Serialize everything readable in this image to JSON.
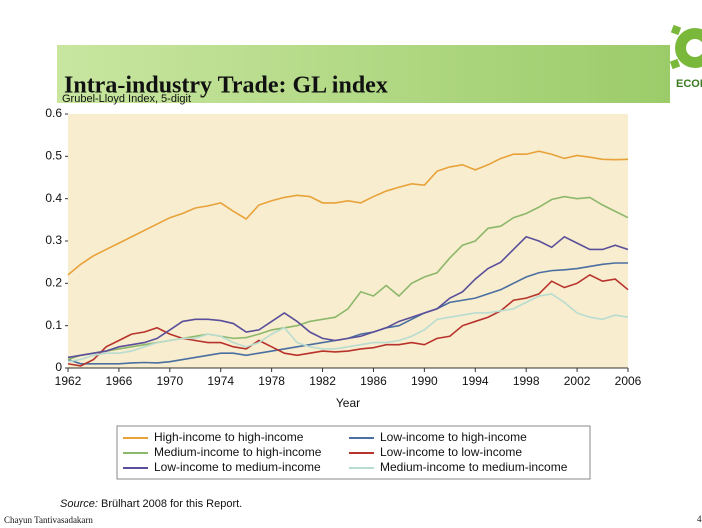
{
  "slide": {
    "title": "Intra-industry Trade: GL index",
    "logo_text": "ECON",
    "footer": "Chayun Tantivasadakarn",
    "page_number": "4",
    "source_label": "Source:",
    "source": "Brülhart 2008 for this Report."
  },
  "chart_data": {
    "type": "line",
    "ylabel": "Grubel-Lloyd Index, 5-digit",
    "xlabel": "Year",
    "x": [
      1962,
      1963,
      1964,
      1965,
      1966,
      1967,
      1968,
      1969,
      1970,
      1971,
      1972,
      1973,
      1974,
      1975,
      1976,
      1977,
      1978,
      1979,
      1980,
      1981,
      1982,
      1983,
      1984,
      1985,
      1986,
      1987,
      1988,
      1989,
      1990,
      1991,
      1992,
      1993,
      1994,
      1995,
      1996,
      1997,
      1998,
      1999,
      2000,
      2001,
      2002,
      2003,
      2004,
      2005,
      2006
    ],
    "xlim": [
      1962,
      2006
    ],
    "xticks": [
      1962,
      1966,
      1970,
      1974,
      1978,
      1982,
      1986,
      1990,
      1994,
      1998,
      2002,
      2006
    ],
    "ylim": [
      0,
      0.6
    ],
    "yticks": [
      0,
      0.1,
      0.2,
      0.3,
      0.4,
      0.5,
      0.6
    ],
    "grid": false,
    "legend": "bottom",
    "series": [
      {
        "name": "High-income to high-income",
        "color": "#e8a23a",
        "values": [
          0.22,
          0.245,
          0.265,
          0.28,
          0.295,
          0.31,
          0.325,
          0.34,
          0.355,
          0.365,
          0.378,
          0.383,
          0.39,
          0.37,
          0.352,
          0.385,
          0.395,
          0.403,
          0.408,
          0.405,
          0.39,
          0.39,
          0.395,
          0.39,
          0.405,
          0.418,
          0.427,
          0.435,
          0.432,
          0.465,
          0.475,
          0.48,
          0.468,
          0.48,
          0.495,
          0.505,
          0.505,
          0.512,
          0.505,
          0.495,
          0.502,
          0.498,
          0.493,
          0.492,
          0.493
        ]
      },
      {
        "name": "Low-income to high-income",
        "color": "#4a6fa0",
        "values": [
          0.02,
          0.01,
          0.01,
          0.01,
          0.01,
          0.012,
          0.013,
          0.012,
          0.015,
          0.02,
          0.025,
          0.03,
          0.035,
          0.035,
          0.03,
          0.035,
          0.04,
          0.045,
          0.05,
          0.055,
          0.06,
          0.065,
          0.07,
          0.08,
          0.085,
          0.095,
          0.1,
          0.115,
          0.13,
          0.14,
          0.155,
          0.16,
          0.165,
          0.175,
          0.185,
          0.2,
          0.215,
          0.225,
          0.23,
          0.232,
          0.235,
          0.24,
          0.245,
          0.248,
          0.248
        ]
      },
      {
        "name": "Medium-income to high-income",
        "color": "#8db86b",
        "values": [
          0.02,
          0.03,
          0.035,
          0.04,
          0.045,
          0.05,
          0.055,
          0.06,
          0.065,
          0.07,
          0.075,
          0.08,
          0.075,
          0.07,
          0.072,
          0.08,
          0.09,
          0.095,
          0.1,
          0.11,
          0.115,
          0.12,
          0.14,
          0.18,
          0.17,
          0.195,
          0.17,
          0.2,
          0.215,
          0.225,
          0.26,
          0.29,
          0.3,
          0.33,
          0.335,
          0.355,
          0.365,
          0.38,
          0.398,
          0.405,
          0.4,
          0.403,
          0.385,
          0.37,
          0.355
        ]
      },
      {
        "name": "Low-income to low-income",
        "color": "#b8332c",
        "values": [
          0.01,
          0.005,
          0.02,
          0.05,
          0.065,
          0.08,
          0.085,
          0.095,
          0.08,
          0.07,
          0.065,
          0.06,
          0.06,
          0.05,
          0.045,
          0.065,
          0.05,
          0.035,
          0.03,
          0.035,
          0.04,
          0.038,
          0.04,
          0.045,
          0.048,
          0.055,
          0.055,
          0.06,
          0.055,
          0.07,
          0.075,
          0.1,
          0.11,
          0.12,
          0.135,
          0.16,
          0.165,
          0.175,
          0.205,
          0.19,
          0.2,
          0.22,
          0.205,
          0.21,
          0.185
        ]
      },
      {
        "name": "Low-income to medium-income",
        "color": "#5a4f9a",
        "values": [
          0.025,
          0.03,
          0.035,
          0.04,
          0.05,
          0.055,
          0.06,
          0.07,
          0.09,
          0.11,
          0.115,
          0.115,
          0.112,
          0.105,
          0.085,
          0.09,
          0.11,
          0.13,
          0.11,
          0.085,
          0.07,
          0.065,
          0.07,
          0.075,
          0.085,
          0.095,
          0.11,
          0.12,
          0.13,
          0.14,
          0.165,
          0.18,
          0.21,
          0.235,
          0.25,
          0.28,
          0.31,
          0.3,
          0.285,
          0.31,
          0.295,
          0.28,
          0.28,
          0.29,
          0.28
        ]
      },
      {
        "name": "Medium-income to medium-income",
        "color": "#b8dcd0",
        "values": [
          0.015,
          0.02,
          0.03,
          0.035,
          0.035,
          0.04,
          0.05,
          0.06,
          0.065,
          0.07,
          0.07,
          0.08,
          0.075,
          0.06,
          0.05,
          0.06,
          0.08,
          0.095,
          0.06,
          0.05,
          0.045,
          0.045,
          0.05,
          0.055,
          0.06,
          0.06,
          0.065,
          0.075,
          0.09,
          0.115,
          0.12,
          0.125,
          0.13,
          0.13,
          0.135,
          0.14,
          0.155,
          0.17,
          0.175,
          0.155,
          0.13,
          0.12,
          0.115,
          0.125,
          0.12
        ]
      }
    ]
  }
}
